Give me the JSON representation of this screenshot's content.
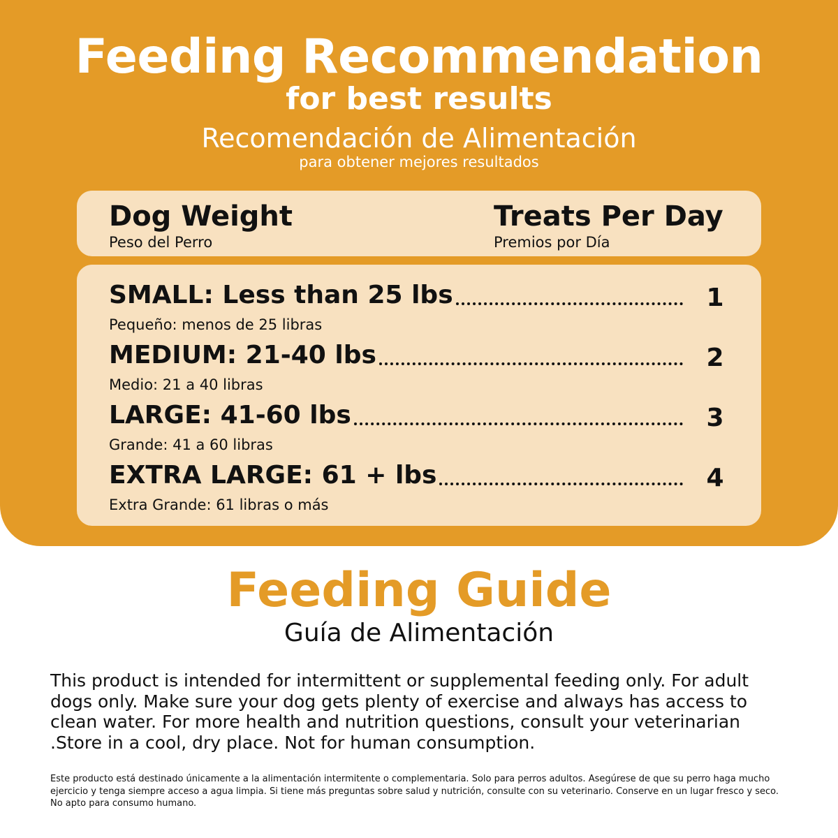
{
  "header": {
    "title": "Feeding Recommendation",
    "subtitle": "for best results",
    "title_es": "Recomendación de Alimentación",
    "subtitle_es": "para obtener mejores resultados"
  },
  "table": {
    "col_left": {
      "title": "Dog Weight",
      "subtitle": "Peso del Perro"
    },
    "col_right": {
      "title": "Treats Per Day",
      "subtitle": "Premios por Día"
    },
    "rows": [
      {
        "label": "SMALL: Less than 25 lbs",
        "label_es": "Pequeño: menos de 25 libras",
        "value": "1"
      },
      {
        "label": "MEDIUM: 21-40 lbs",
        "label_es": "Medio: 21 a 40 libras",
        "value": "2"
      },
      {
        "label": "LARGE: 41-60 lbs",
        "label_es": "Grande: 41 a 60 libras",
        "value": "3"
      },
      {
        "label": "EXTRA LARGE: 61 + lbs",
        "label_es": "Extra Grande: 61 libras o más",
        "value": "4"
      }
    ]
  },
  "guide": {
    "title": "Feeding Guide",
    "title_es": "Guía de Alimentación",
    "text": "This product is intended for intermittent or supplemental feeding only. For adult dogs only. Make sure your dog gets plenty of exercise and always has access to clean water. For more health and nutrition questions, consult your veterinarian .Store in a cool, dry place. Not for human consumption.",
    "text_es": "Este producto está destinado únicamente a la alimentación intermitente o complementaria. Solo para perros adultos. Asegúrese de que su perro haga mucho ejercicio y tenga siempre acceso a agua limpia. Si tiene más preguntas sobre salud y nutrición, consulte con su veterinario. Conserve en un lugar fresco y seco. No apto para consumo humano."
  },
  "colors": {
    "accent": "#e49b27",
    "card": "#f8e1c0",
    "text": "#111111"
  }
}
